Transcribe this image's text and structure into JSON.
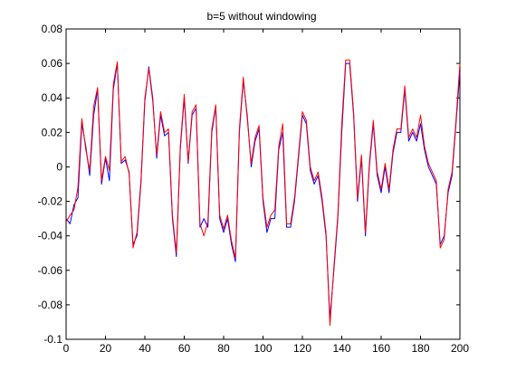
{
  "chart_data": {
    "type": "line",
    "title": "b=5 without windowing",
    "xlabel": "",
    "ylabel": "",
    "xlim": [
      0,
      200
    ],
    "ylim": [
      -0.1,
      0.08
    ],
    "grid": false,
    "legend": "none",
    "x_ticks": [
      0,
      20,
      40,
      60,
      80,
      100,
      120,
      140,
      160,
      180,
      200
    ],
    "x_tick_labels": [
      "0",
      "20",
      "40",
      "60",
      "80",
      "100",
      "120",
      "140",
      "160",
      "180",
      "200"
    ],
    "y_ticks": [
      -0.1,
      -0.08,
      -0.06,
      -0.04,
      -0.02,
      0,
      0.02,
      0.04,
      0.06,
      0.08
    ],
    "y_tick_labels": [
      "-0.1",
      "-0.08",
      "-0.06",
      "-0.04",
      "-0.02",
      "0",
      "0.02",
      "0.04",
      "0.06",
      "0.08"
    ],
    "series": [
      {
        "color": "#0000ff",
        "x": [
          0,
          2,
          4,
          6,
          8,
          10,
          12,
          14,
          16,
          18,
          20,
          22,
          24,
          26,
          28,
          30,
          32,
          34,
          36,
          38,
          40,
          42,
          44,
          46,
          48,
          50,
          52,
          54,
          56,
          58,
          60,
          62,
          64,
          66,
          68,
          70,
          72,
          74,
          76,
          78,
          80,
          82,
          84,
          86,
          88,
          90,
          92,
          94,
          96,
          98,
          100,
          102,
          104,
          106,
          108,
          110,
          112,
          114,
          116,
          118,
          120,
          122,
          124,
          126,
          128,
          130,
          132,
          134,
          136,
          138,
          140,
          142,
          144,
          146,
          148,
          150,
          152,
          154,
          156,
          158,
          160,
          162,
          164,
          166,
          168,
          170,
          172,
          174,
          176,
          178,
          180,
          182,
          184,
          186,
          188,
          190,
          192,
          194,
          196,
          198,
          200
        ],
        "y": [
          -0.03,
          -0.033,
          -0.022,
          -0.018,
          0.025,
          0.012,
          -0.005,
          0.03,
          0.045,
          -0.01,
          0.005,
          -0.008,
          0.045,
          0.06,
          0.002,
          0.004,
          -0.003,
          -0.045,
          -0.04,
          -0.01,
          0.038,
          0.058,
          0.04,
          0.005,
          0.03,
          0.018,
          0.02,
          -0.03,
          -0.052,
          0.01,
          0.04,
          0.002,
          0.03,
          0.034,
          -0.035,
          -0.03,
          -0.035,
          0.02,
          0.035,
          -0.03,
          -0.038,
          -0.03,
          -0.045,
          -0.055,
          0.02,
          0.05,
          0.03,
          0.0,
          0.015,
          0.022,
          -0.02,
          -0.038,
          -0.03,
          -0.03,
          0.01,
          0.02,
          -0.035,
          -0.035,
          -0.02,
          0.005,
          0.03,
          0.025,
          -0.002,
          -0.01,
          -0.005,
          -0.02,
          -0.04,
          -0.088,
          -0.06,
          -0.03,
          0.02,
          0.06,
          0.06,
          0.03,
          -0.02,
          0.005,
          -0.04,
          0.0,
          0.025,
          -0.005,
          -0.015,
          0.0,
          -0.015,
          0.008,
          0.02,
          0.02,
          0.045,
          0.015,
          0.02,
          0.015,
          0.025,
          0.01,
          0.0,
          -0.005,
          -0.01,
          -0.045,
          -0.04,
          -0.015,
          -0.005,
          0.025,
          0.055
        ]
      },
      {
        "color": "#ff0000",
        "x": [
          0,
          2,
          4,
          6,
          8,
          10,
          12,
          14,
          16,
          18,
          20,
          22,
          24,
          26,
          28,
          30,
          32,
          34,
          36,
          38,
          40,
          42,
          44,
          46,
          48,
          50,
          52,
          54,
          56,
          58,
          60,
          62,
          64,
          66,
          68,
          70,
          72,
          74,
          76,
          78,
          80,
          82,
          84,
          86,
          88,
          90,
          92,
          94,
          96,
          98,
          100,
          102,
          104,
          106,
          108,
          110,
          112,
          114,
          116,
          118,
          120,
          122,
          124,
          126,
          128,
          130,
          132,
          134,
          136,
          138,
          140,
          142,
          144,
          146,
          148,
          150,
          152,
          154,
          156,
          158,
          160,
          162,
          164,
          166,
          168,
          170,
          172,
          174,
          176,
          178,
          180,
          182,
          184,
          186,
          188,
          190,
          192,
          194,
          196,
          198,
          200
        ],
        "y": [
          -0.032,
          -0.028,
          -0.025,
          -0.012,
          0.028,
          0.01,
          -0.002,
          0.035,
          0.046,
          -0.008,
          0.006,
          -0.002,
          0.048,
          0.061,
          0.003,
          0.006,
          -0.004,
          -0.047,
          -0.038,
          -0.008,
          0.04,
          0.057,
          0.038,
          0.007,
          0.032,
          0.02,
          0.022,
          -0.028,
          -0.05,
          0.012,
          0.042,
          0.003,
          0.032,
          0.036,
          -0.033,
          -0.04,
          -0.032,
          0.022,
          0.036,
          -0.028,
          -0.036,
          -0.028,
          -0.043,
          -0.053,
          0.022,
          0.052,
          0.028,
          0.002,
          0.017,
          0.024,
          -0.018,
          -0.035,
          -0.028,
          -0.025,
          0.012,
          0.025,
          -0.033,
          -0.033,
          -0.018,
          0.007,
          0.032,
          0.027,
          0.0,
          -0.008,
          -0.003,
          -0.018,
          -0.038,
          -0.092,
          -0.058,
          -0.028,
          0.025,
          0.062,
          0.062,
          0.032,
          -0.018,
          0.007,
          -0.038,
          0.002,
          0.027,
          -0.003,
          -0.013,
          0.002,
          -0.013,
          0.01,
          0.022,
          0.022,
          0.047,
          0.017,
          0.022,
          0.017,
          0.03,
          0.012,
          0.002,
          -0.003,
          -0.008,
          -0.047,
          -0.042,
          -0.013,
          -0.003,
          0.027,
          0.06
        ]
      }
    ]
  }
}
